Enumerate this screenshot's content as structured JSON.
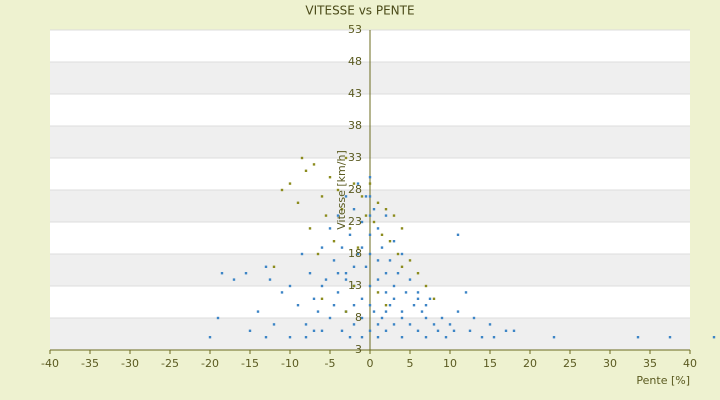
{
  "chart_data": {
    "type": "scatter",
    "title": "VITESSE vs PENTE",
    "x_label": "Pente [%]",
    "y_label": "Vitesse [km/h]",
    "xlim": [
      -40,
      40
    ],
    "xticks": [
      -40,
      -35,
      -30,
      -25,
      -20,
      -15,
      -10,
      -5,
      0,
      5,
      10,
      15,
      20,
      25,
      30,
      35,
      40
    ],
    "ylim": [
      3,
      53
    ],
    "yticks": [
      3,
      8,
      13,
      18,
      23,
      28,
      33,
      38,
      43,
      48,
      53
    ],
    "bands": true,
    "series": [
      {
        "color": "#3d85c6",
        "x": [
          -20,
          -19,
          -18.5,
          -17,
          -15.5,
          -15,
          -14,
          -13,
          -12.5,
          -12,
          -11,
          -10,
          -10,
          -9,
          -8.5,
          -8,
          -7.5,
          -7,
          -6.5,
          -6,
          -6,
          -5.5,
          -5,
          -5,
          -4.5,
          -4.5,
          -4,
          -4,
          -3.5,
          -3.5,
          -3,
          -3,
          -3,
          -2.5,
          -2.5,
          -2,
          -2,
          -2,
          -1.5,
          -1.5,
          -1,
          -1,
          -1,
          -0.5,
          -0.5,
          0,
          0,
          0,
          0,
          0.5,
          0.5,
          1,
          1,
          1,
          1.5,
          1.5,
          2,
          2,
          2,
          2.5,
          2.5,
          3,
          3,
          3,
          3.5,
          4,
          4,
          4,
          4.5,
          5,
          5,
          5.5,
          6,
          6,
          6.5,
          7,
          7,
          7.5,
          8,
          8.5,
          9,
          9.5,
          10,
          10.5,
          11,
          11,
          12,
          12.5,
          13,
          14,
          15,
          15.5,
          17,
          18,
          23,
          33.5,
          37.5,
          43,
          -8,
          -13,
          -2,
          -1,
          0,
          1,
          2,
          -3,
          3,
          -4,
          4,
          0,
          -1,
          1,
          -2,
          2,
          0,
          -6,
          6,
          -7,
          7,
          0
        ],
        "y": [
          5,
          8,
          15,
          14,
          15,
          6,
          9,
          16,
          14,
          7,
          12,
          13,
          5,
          10,
          18,
          7,
          15,
          11,
          9,
          19,
          6,
          14,
          22,
          8,
          17,
          10,
          24,
          12,
          19,
          6,
          27,
          15,
          9,
          21,
          5,
          25,
          13,
          7,
          29,
          18,
          23,
          11,
          5,
          27,
          16,
          30,
          21,
          13,
          6,
          25,
          9,
          22,
          14,
          5,
          19,
          8,
          24,
          12,
          6,
          17,
          10,
          20,
          13,
          7,
          15,
          18,
          9,
          5,
          12,
          14,
          7,
          10,
          12,
          6,
          9,
          8,
          5,
          11,
          7,
          6,
          8,
          5,
          7,
          6,
          21,
          9,
          12,
          6,
          8,
          5,
          7,
          5,
          6,
          6,
          5,
          5,
          5,
          5,
          5,
          5,
          16,
          19,
          18,
          17,
          15,
          14,
          11,
          15,
          8,
          10,
          8,
          7,
          10,
          9,
          24,
          13,
          11,
          6,
          10,
          27
        ]
      },
      {
        "color": "#8c8c1e",
        "x": [
          -11,
          -10,
          -9,
          -8.5,
          -8,
          -7.5,
          -7,
          -6.5,
          -6,
          -5.5,
          -5,
          -4.5,
          -4,
          -3.5,
          -3,
          -2.5,
          -2,
          -1.5,
          -1,
          -0.5,
          0,
          0.5,
          1,
          1.5,
          2,
          2.5,
          3,
          3.5,
          4,
          5,
          6,
          7,
          8,
          -12,
          -6,
          -3,
          2,
          4,
          -2,
          1
        ],
        "y": [
          28,
          29,
          26,
          33,
          31,
          22,
          32,
          18,
          27,
          24,
          30,
          20,
          28,
          25,
          33,
          22,
          29,
          19,
          27,
          24,
          29,
          23,
          26,
          21,
          25,
          20,
          24,
          18,
          22,
          17,
          15,
          13,
          11,
          16,
          11,
          9,
          10,
          16,
          13,
          12
        ]
      }
    ]
  }
}
